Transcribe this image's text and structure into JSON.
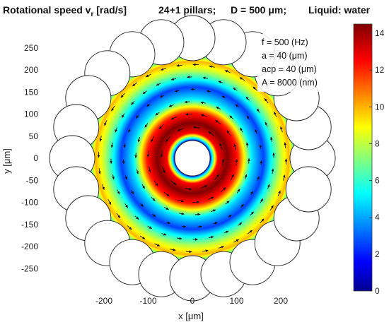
{
  "chart_data": {
    "type": "heatmap",
    "title": {
      "main": "Rotational speed v",
      "sub": "r",
      "unit": " [rad/s]",
      "pillars": "24+1 pillars;",
      "diameter": "D = 500 μm;",
      "liquid": "Liquid: water"
    },
    "xlabel": "x [μm]",
    "ylabel": "y [μm]",
    "xlim": [
      -300,
      300
    ],
    "ylim": [
      -300,
      300
    ],
    "x_ticks": [
      -200,
      -100,
      0,
      100,
      200
    ],
    "x_tick_labels": [
      "-200",
      "-100",
      "0",
      "100",
      "200"
    ],
    "y_ticks": [
      250,
      200,
      150,
      100,
      50,
      0,
      -50,
      -100,
      -150,
      -200,
      -250
    ],
    "y_tick_labels": [
      "250",
      "200",
      "150",
      "100",
      "50",
      "0",
      "-50",
      "-100",
      "-150",
      "-200",
      "-250"
    ],
    "colorbar": {
      "min": 0,
      "max": 14.5,
      "ticks": [
        0,
        2,
        4,
        6,
        8,
        10,
        12,
        14
      ],
      "tick_labels": [
        "0",
        "2",
        "4",
        "6",
        "8",
        "10",
        "12",
        "14"
      ],
      "colormap": "jet"
    },
    "annotations": [
      "f = 500 (Hz)",
      "a = 40 (μm)",
      "acp = 40 (μm)",
      "A = 8000 (nm)"
    ],
    "geometry": {
      "chamber_radius": 250,
      "center_pillar_radius": 40,
      "outer_pillar_count": 24,
      "outer_pillar_radius": 40
    },
    "radial_profile": {
      "r": [
        40,
        47,
        58,
        80,
        105,
        135,
        162,
        180,
        200,
        220,
        235,
        250
      ],
      "v": [
        1.0,
        6.0,
        12.5,
        14.5,
        12.0,
        5.0,
        2.5,
        5.5,
        8.0,
        10.0,
        5.5,
        1.5
      ]
    },
    "arrow_direction": "counter-clockwise"
  }
}
